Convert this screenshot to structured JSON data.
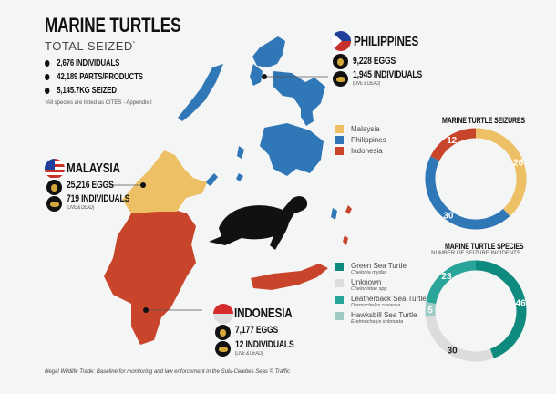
{
  "header": {
    "title": "MARINE TURTLES",
    "subtitle": "TOTAL SEIZED",
    "asterisk": "*",
    "totals": [
      "2,676 INDIVIDUALS",
      "42,189 PARTS/PRODUCTS",
      "5,145.7KG SEIZED"
    ],
    "note": "*All species are listed as CITES - Appendix I"
  },
  "countries": {
    "philippines": {
      "name": "PHILIPPINES",
      "eggs": "9,228 EGGS",
      "individuals": "1,945 INDIVIDUALS",
      "qualifier": "(LIVE & DEAD)"
    },
    "malaysia": {
      "name": "MALAYSIA",
      "eggs": "25,216 EGGS",
      "individuals": "719 INDIVIDUALS",
      "qualifier": "(LIVE & DEAD)"
    },
    "indonesia": {
      "name": "INDONESIA",
      "eggs": "7,177 EGGS",
      "individuals": "12 INDIVIDUALS",
      "qualifier": "(LIVE & DEAD)"
    }
  },
  "map_legend": [
    {
      "label": "Malaysia",
      "color": "#eec065"
    },
    {
      "label": "Philippines",
      "color": "#2f77b6"
    },
    {
      "label": "Indonesia",
      "color": "#c8452b"
    }
  ],
  "species_legend": [
    {
      "label": "Green Sea Turtle",
      "latin": "Chelonia mydas",
      "color": "#0f8a7e"
    },
    {
      "label": "Unknown",
      "latin": "Cheloniidae spp",
      "color": "#dcdcdc"
    },
    {
      "label": "Leatherback Sea Turtle",
      "latin": "Dermochelys coriacea",
      "color": "#2aa59a"
    },
    {
      "label": "Hawksbill Sea Turtle",
      "latin": "Eretmochelys imbricata",
      "color": "#9fc9c4"
    }
  ],
  "footer": "Illegal Wildlife Trade: Baseline for monitoring and law enforcement in the Sulu-Celebes Seas © Traffic",
  "chart_data": [
    {
      "type": "pie",
      "title": "MARINE TURTLE SEIZURES",
      "categories": [
        "Malaysia",
        "Philippines",
        "Indonesia"
      ],
      "values": [
        26,
        30,
        12
      ],
      "colors": [
        "#eec065",
        "#2f77b6",
        "#c8452b"
      ]
    },
    {
      "type": "pie",
      "title": "MARINE TURTLE SPECIES",
      "subtitle": "NUMBER OF SEIZURE INCIDENTS",
      "categories": [
        "Green Sea Turtle",
        "Unknown",
        "Hawksbill Sea Turtle",
        "Leatherback Sea Turtle"
      ],
      "values": [
        46,
        30,
        5,
        23
      ],
      "colors": [
        "#0f8a7e",
        "#dcdcdc",
        "#9fc9c4",
        "#2aa59a"
      ]
    }
  ]
}
